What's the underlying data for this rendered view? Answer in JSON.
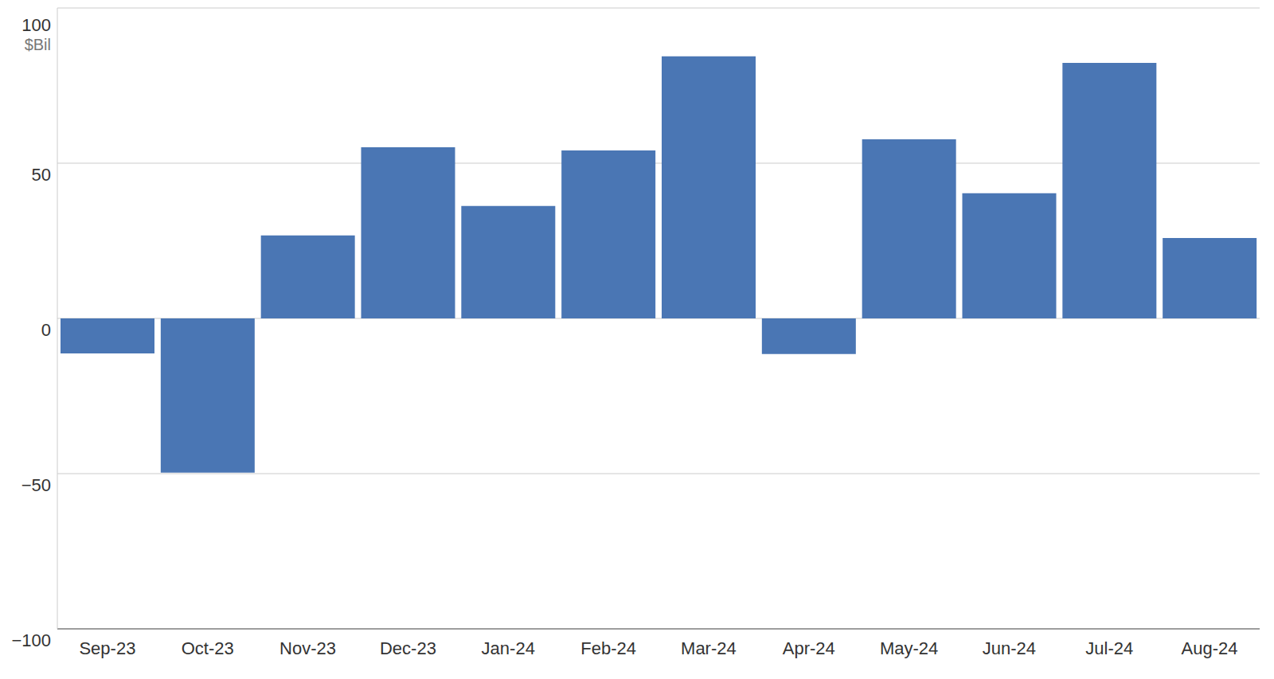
{
  "chart_data": {
    "type": "bar",
    "ylabel": "$Bil",
    "categories": [
      "Sep-23",
      "Oct-23",
      "Nov-23",
      "Dec-23",
      "Jan-24",
      "Feb-24",
      "Mar-24",
      "Apr-24",
      "May-24",
      "Jun-24",
      "Jul-24",
      "Aug-24"
    ],
    "values": [
      -11.3,
      -49.7,
      26.7,
      55.1,
      36.2,
      54.1,
      84.4,
      -11.5,
      57.7,
      40.3,
      82.3,
      25.9
    ],
    "color": "#4a76b4",
    "ylim": [
      -100,
      100
    ],
    "yticks": [
      {
        "value": -100,
        "label": "−100"
      },
      {
        "value": -50,
        "label": "−50"
      },
      0,
      50,
      100
    ],
    "grid": true
  }
}
